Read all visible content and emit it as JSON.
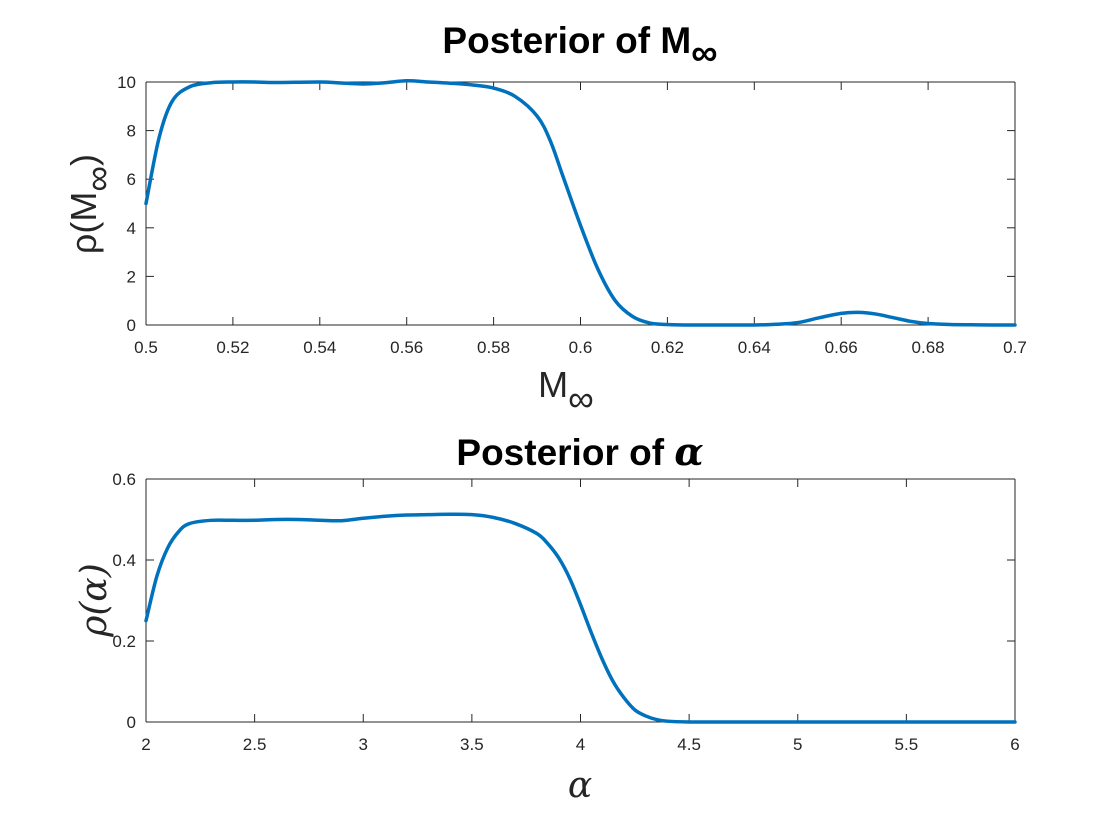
{
  "chart_data": [
    {
      "type": "line",
      "title_main": "Posterior of M",
      "title_sub": "∞",
      "xlabel_main": "M",
      "xlabel_sub": "∞",
      "ylabel_prefix": "ρ(M",
      "ylabel_sub": "∞",
      "ylabel_suffix": ")",
      "xlim": [
        0.5,
        0.7
      ],
      "ylim": [
        0,
        10
      ],
      "xticks": [
        0.5,
        0.52,
        0.54,
        0.56,
        0.58,
        0.6,
        0.62,
        0.64,
        0.66,
        0.68,
        0.7
      ],
      "xticklabels": [
        "0.5",
        "0.52",
        "0.54",
        "0.56",
        "0.58",
        "0.6",
        "0.62",
        "0.64",
        "0.66",
        "0.68",
        "0.7"
      ],
      "yticks": [
        0,
        2,
        4,
        6,
        8,
        10
      ],
      "yticklabels": [
        "0",
        "2",
        "4",
        "6",
        "8",
        "10"
      ],
      "grid": false,
      "color": "#0072BD",
      "x": [
        0.5,
        0.503,
        0.506,
        0.51,
        0.515,
        0.52,
        0.525,
        0.53,
        0.54,
        0.545,
        0.55,
        0.555,
        0.56,
        0.565,
        0.57,
        0.575,
        0.58,
        0.585,
        0.59,
        0.593,
        0.596,
        0.6,
        0.604,
        0.608,
        0.612,
        0.616,
        0.62,
        0.625,
        0.63,
        0.635,
        0.64,
        0.645,
        0.65,
        0.655,
        0.66,
        0.664,
        0.668,
        0.672,
        0.676,
        0.68,
        0.685,
        0.69,
        0.695,
        0.7
      ],
      "y": [
        5.0,
        7.7,
        9.2,
        9.8,
        9.97,
        10.0,
        10.0,
        9.98,
        10.0,
        9.96,
        9.92,
        9.97,
        10.05,
        10.0,
        9.95,
        9.88,
        9.75,
        9.4,
        8.6,
        7.6,
        6.1,
        4.1,
        2.3,
        1.0,
        0.35,
        0.08,
        0.02,
        0.0,
        0.0,
        0.0,
        0.0,
        0.03,
        0.1,
        0.3,
        0.48,
        0.52,
        0.45,
        0.3,
        0.15,
        0.06,
        0.02,
        0.01,
        0.0,
        0.0
      ]
    },
    {
      "type": "line",
      "title_main": "Posterior of ",
      "title_sub": "α",
      "xlabel_main": "α",
      "xlabel_sub": "",
      "ylabel_prefix": "ρ(α)",
      "ylabel_sub": "",
      "ylabel_suffix": "",
      "xlim": [
        2,
        6
      ],
      "ylim": [
        0,
        0.6
      ],
      "xticks": [
        2,
        2.5,
        3,
        3.5,
        4,
        4.5,
        5,
        5.5,
        6
      ],
      "xticklabels": [
        "2",
        "2.5",
        "3",
        "3.5",
        "4",
        "4.5",
        "5",
        "5.5",
        "6"
      ],
      "yticks": [
        0,
        0.2,
        0.4,
        0.6
      ],
      "yticklabels": [
        "0",
        "0.2",
        "0.4",
        "0.6"
      ],
      "grid": false,
      "color": "#0072BD",
      "x": [
        2.0,
        2.05,
        2.1,
        2.15,
        2.2,
        2.3,
        2.4,
        2.5,
        2.6,
        2.7,
        2.8,
        2.9,
        3.0,
        3.1,
        3.2,
        3.3,
        3.4,
        3.5,
        3.6,
        3.7,
        3.8,
        3.85,
        3.9,
        3.95,
        4.0,
        4.05,
        4.1,
        4.15,
        4.2,
        4.25,
        4.3,
        4.35,
        4.4,
        4.5,
        4.6,
        4.8,
        5.0,
        5.5,
        6.0
      ],
      "y": [
        0.25,
        0.36,
        0.43,
        0.47,
        0.49,
        0.498,
        0.498,
        0.498,
        0.5,
        0.5,
        0.498,
        0.497,
        0.503,
        0.508,
        0.511,
        0.512,
        0.513,
        0.512,
        0.505,
        0.49,
        0.465,
        0.44,
        0.405,
        0.355,
        0.29,
        0.22,
        0.155,
        0.1,
        0.06,
        0.03,
        0.015,
        0.006,
        0.002,
        0.0,
        0.0,
        0.0,
        0.0,
        0.0,
        0.0
      ]
    }
  ]
}
